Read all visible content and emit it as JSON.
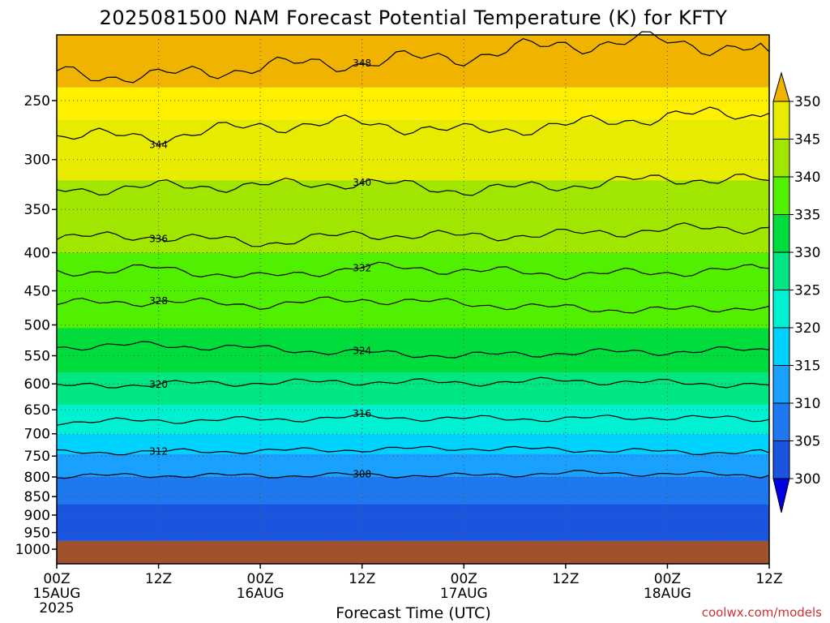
{
  "chart_data": {
    "type": "heatmap",
    "title": "2025081500 NAM Forecast Potential Temperature (K) for KFTY",
    "xlabel": "Forecast Time (UTC)",
    "ylabel": "",
    "credit": "coolwx.com/models",
    "y_axis": {
      "scale": "pressure (hPa), inverted",
      "ticks": [
        250,
        300,
        350,
        400,
        450,
        500,
        550,
        600,
        650,
        700,
        750,
        800,
        850,
        900,
        950,
        1000
      ],
      "ylim": [
        1030,
        195
      ]
    },
    "x_axis": {
      "ticks": [
        {
          "hour": 0,
          "label": "00Z",
          "sub": "15AUG",
          "sub2": "2025"
        },
        {
          "hour": 12,
          "label": "12Z",
          "sub": "",
          "sub2": ""
        },
        {
          "hour": 24,
          "label": "00Z",
          "sub": "16AUG",
          "sub2": ""
        },
        {
          "hour": 36,
          "label": "12Z",
          "sub": "",
          "sub2": ""
        },
        {
          "hour": 48,
          "label": "00Z",
          "sub": "17AUG",
          "sub2": ""
        },
        {
          "hour": 60,
          "label": "12Z",
          "sub": "",
          "sub2": ""
        },
        {
          "hour": 72,
          "label": "00Z",
          "sub": "18AUG",
          "sub2": ""
        },
        {
          "hour": 84,
          "label": "12Z",
          "sub": "",
          "sub2": ""
        }
      ],
      "xlim": [
        0,
        84
      ]
    },
    "colorbar": {
      "levels": [
        300,
        305,
        310,
        315,
        320,
        325,
        330,
        335,
        340,
        345,
        350
      ],
      "labels": [
        "300",
        "305",
        "310",
        "315",
        "320",
        "325",
        "330",
        "335",
        "340",
        "345",
        "350"
      ],
      "colors": [
        "#0000e0",
        "#1a55e0",
        "#1e78f0",
        "#1aa0ff",
        "#00d2ff",
        "#00f0d2",
        "#00e682",
        "#00dc3c",
        "#50f000",
        "#a0e600",
        "#e6eb00",
        "#fff000",
        "#f0b400"
      ]
    },
    "surface_color": "#a0522d",
    "surface_pressure": 975,
    "contours": [
      {
        "level": 308,
        "label": "308",
        "pressures": [
          [
            0,
            798
          ],
          [
            12,
            796
          ],
          [
            24,
            797
          ],
          [
            36,
            795
          ],
          [
            48,
            797
          ],
          [
            60,
            790
          ],
          [
            72,
            792
          ],
          [
            84,
            796
          ]
        ]
      },
      {
        "level": 312,
        "label": "312",
        "pressures": [
          [
            0,
            742
          ],
          [
            12,
            740
          ],
          [
            24,
            738
          ],
          [
            36,
            735
          ],
          [
            48,
            732
          ],
          [
            60,
            735
          ],
          [
            72,
            740
          ],
          [
            84,
            742
          ]
        ]
      },
      {
        "level": 316,
        "label": "316",
        "pressures": [
          [
            0,
            675
          ],
          [
            12,
            672
          ],
          [
            24,
            670
          ],
          [
            36,
            665
          ],
          [
            48,
            668
          ],
          [
            60,
            668
          ],
          [
            72,
            665
          ],
          [
            84,
            670
          ]
        ]
      },
      {
        "level": 320,
        "label": "320",
        "pressures": [
          [
            0,
            605
          ],
          [
            12,
            600
          ],
          [
            24,
            598
          ],
          [
            36,
            596
          ],
          [
            48,
            598
          ],
          [
            60,
            594
          ],
          [
            72,
            598
          ],
          [
            84,
            602
          ]
        ]
      },
      {
        "level": 324,
        "label": "324",
        "pressures": [
          [
            0,
            535
          ],
          [
            12,
            532
          ],
          [
            24,
            538
          ],
          [
            36,
            545
          ],
          [
            48,
            550
          ],
          [
            60,
            545
          ],
          [
            72,
            543
          ],
          [
            84,
            540
          ]
        ]
      },
      {
        "level": 328,
        "label": "328",
        "pressures": [
          [
            0,
            468
          ],
          [
            12,
            465
          ],
          [
            24,
            470
          ],
          [
            36,
            462
          ],
          [
            48,
            468
          ],
          [
            60,
            475
          ],
          [
            72,
            478
          ],
          [
            84,
            472
          ]
        ]
      },
      {
        "level": 332,
        "label": "332",
        "pressures": [
          [
            0,
            425
          ],
          [
            12,
            420
          ],
          [
            24,
            432
          ],
          [
            36,
            418
          ],
          [
            48,
            422
          ],
          [
            60,
            428
          ],
          [
            72,
            425
          ],
          [
            84,
            420
          ]
        ]
      },
      {
        "level": 336,
        "label": "336",
        "pressures": [
          [
            0,
            382
          ],
          [
            12,
            380
          ],
          [
            24,
            388
          ],
          [
            36,
            378
          ],
          [
            48,
            380
          ],
          [
            60,
            378
          ],
          [
            72,
            372
          ],
          [
            84,
            370
          ]
        ]
      },
      {
        "level": 340,
        "label": "340",
        "pressures": [
          [
            0,
            330
          ],
          [
            12,
            326
          ],
          [
            24,
            325
          ],
          [
            36,
            322
          ],
          [
            48,
            330
          ],
          [
            60,
            325
          ],
          [
            72,
            318
          ],
          [
            84,
            320
          ]
        ]
      },
      {
        "level": 344,
        "label": "344",
        "pressures": [
          [
            0,
            278
          ],
          [
            12,
            280
          ],
          [
            24,
            270
          ],
          [
            36,
            268
          ],
          [
            48,
            275
          ],
          [
            60,
            270
          ],
          [
            72,
            262
          ],
          [
            84,
            260
          ]
        ]
      },
      {
        "level": 348,
        "label": "348",
        "pressures": [
          [
            0,
            230
          ],
          [
            12,
            232
          ],
          [
            24,
            225
          ],
          [
            36,
            222
          ],
          [
            48,
            218
          ],
          [
            60,
            210
          ],
          [
            72,
            208
          ],
          [
            84,
            215
          ]
        ]
      }
    ]
  }
}
